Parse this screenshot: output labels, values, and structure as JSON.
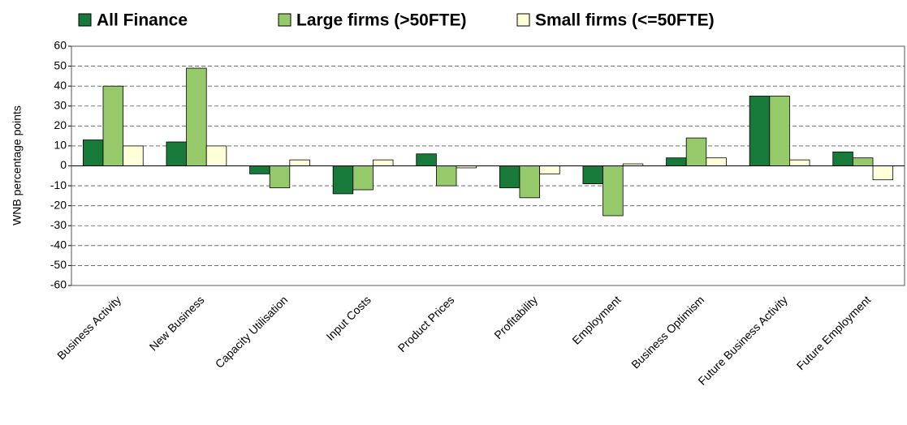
{
  "chart_data": {
    "type": "bar",
    "y_label": "WNB percentage points",
    "categories": [
      "Business Activity",
      "New Business",
      "Capacity Utilisation",
      "Input Costs",
      "Product Prices",
      "Profitability",
      "Employment",
      "Business Optimism",
      "Future Business Activity",
      "Future Employment"
    ],
    "series": [
      {
        "name": "All Finance",
        "color": "#17793a",
        "values": [
          13,
          12,
          -4,
          -14,
          6,
          -11,
          -9,
          4,
          35,
          7
        ]
      },
      {
        "name": "Large firms (>50FTE)",
        "color": "#95c96a",
        "values": [
          40,
          49,
          -11,
          -12,
          -10,
          -16,
          -25,
          14,
          35,
          4
        ]
      },
      {
        "name": "Small firms (<=50FTE)",
        "color": "#ffffd9",
        "values": [
          10,
          10,
          3,
          3,
          -1,
          -4,
          1,
          4,
          3,
          -7
        ]
      }
    ],
    "ylim": [
      -60,
      60
    ],
    "yticks": [
      -60,
      -50,
      -40,
      -30,
      -20,
      -10,
      0,
      10,
      20,
      30,
      40,
      50,
      60
    ],
    "grid": true
  }
}
